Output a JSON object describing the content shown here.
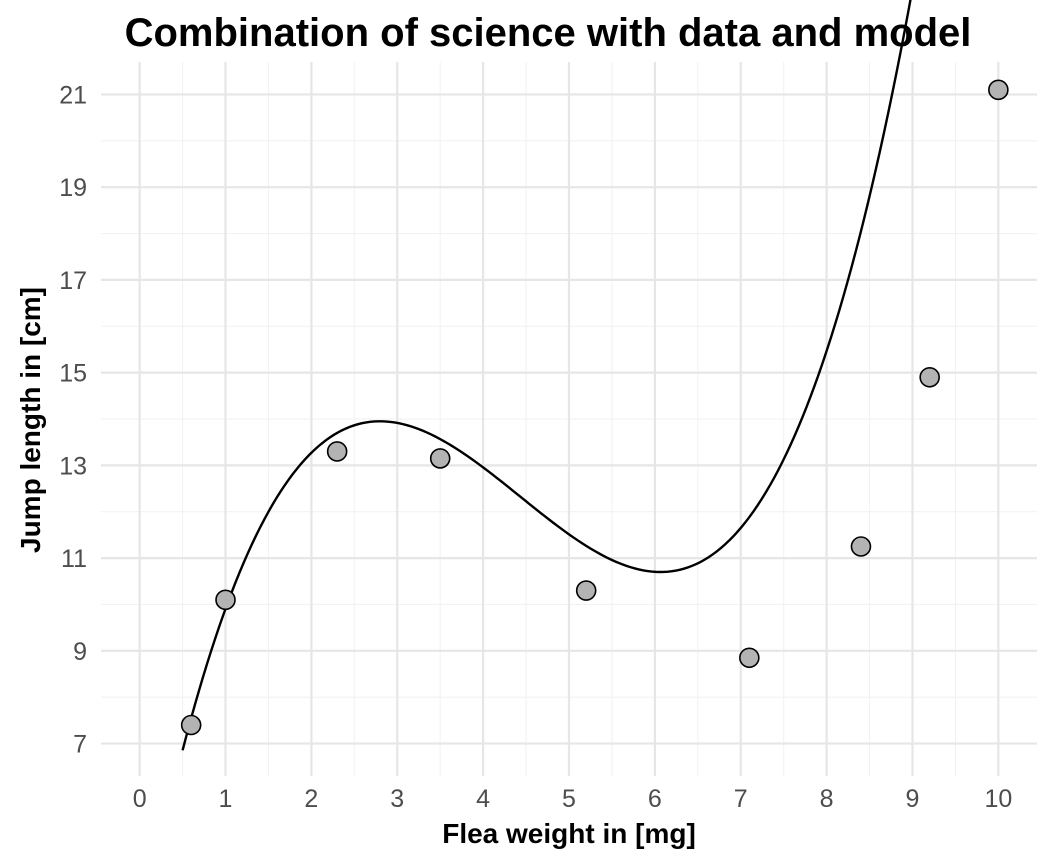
{
  "chart_data": {
    "type": "scatter",
    "title": "Combination of science with data and model",
    "xlabel": "Flea weight in [mg]",
    "ylabel": "Jump length in [cm]",
    "xlim": [
      -0.45,
      10.45
    ],
    "ylim": [
      6.3,
      21.7
    ],
    "x_ticks": [
      0,
      1,
      2,
      3,
      4,
      5,
      6,
      7,
      8,
      9,
      10
    ],
    "y_ticks": [
      7,
      9,
      11,
      13,
      15,
      17,
      19,
      21
    ],
    "grid": true,
    "legend": "none",
    "points": {
      "x": [
        0.6,
        1.0,
        2.3,
        3.5,
        5.2,
        7.1,
        8.4,
        9.2,
        10.0
      ],
      "y": [
        7.4,
        10.1,
        13.3,
        13.15,
        10.3,
        8.85,
        11.25,
        14.9,
        21.1
      ]
    },
    "fit_curve": {
      "type": "polynomial",
      "x_range": [
        0.5,
        10.0
      ],
      "coefficients_ascending": [
        2.7,
        9.5,
        -2.48,
        0.1865
      ]
    },
    "colors": {
      "point_fill": "#b3b3b3",
      "point_stroke": "#000000",
      "curve": "#000000",
      "grid": "#e6e6e6"
    }
  }
}
